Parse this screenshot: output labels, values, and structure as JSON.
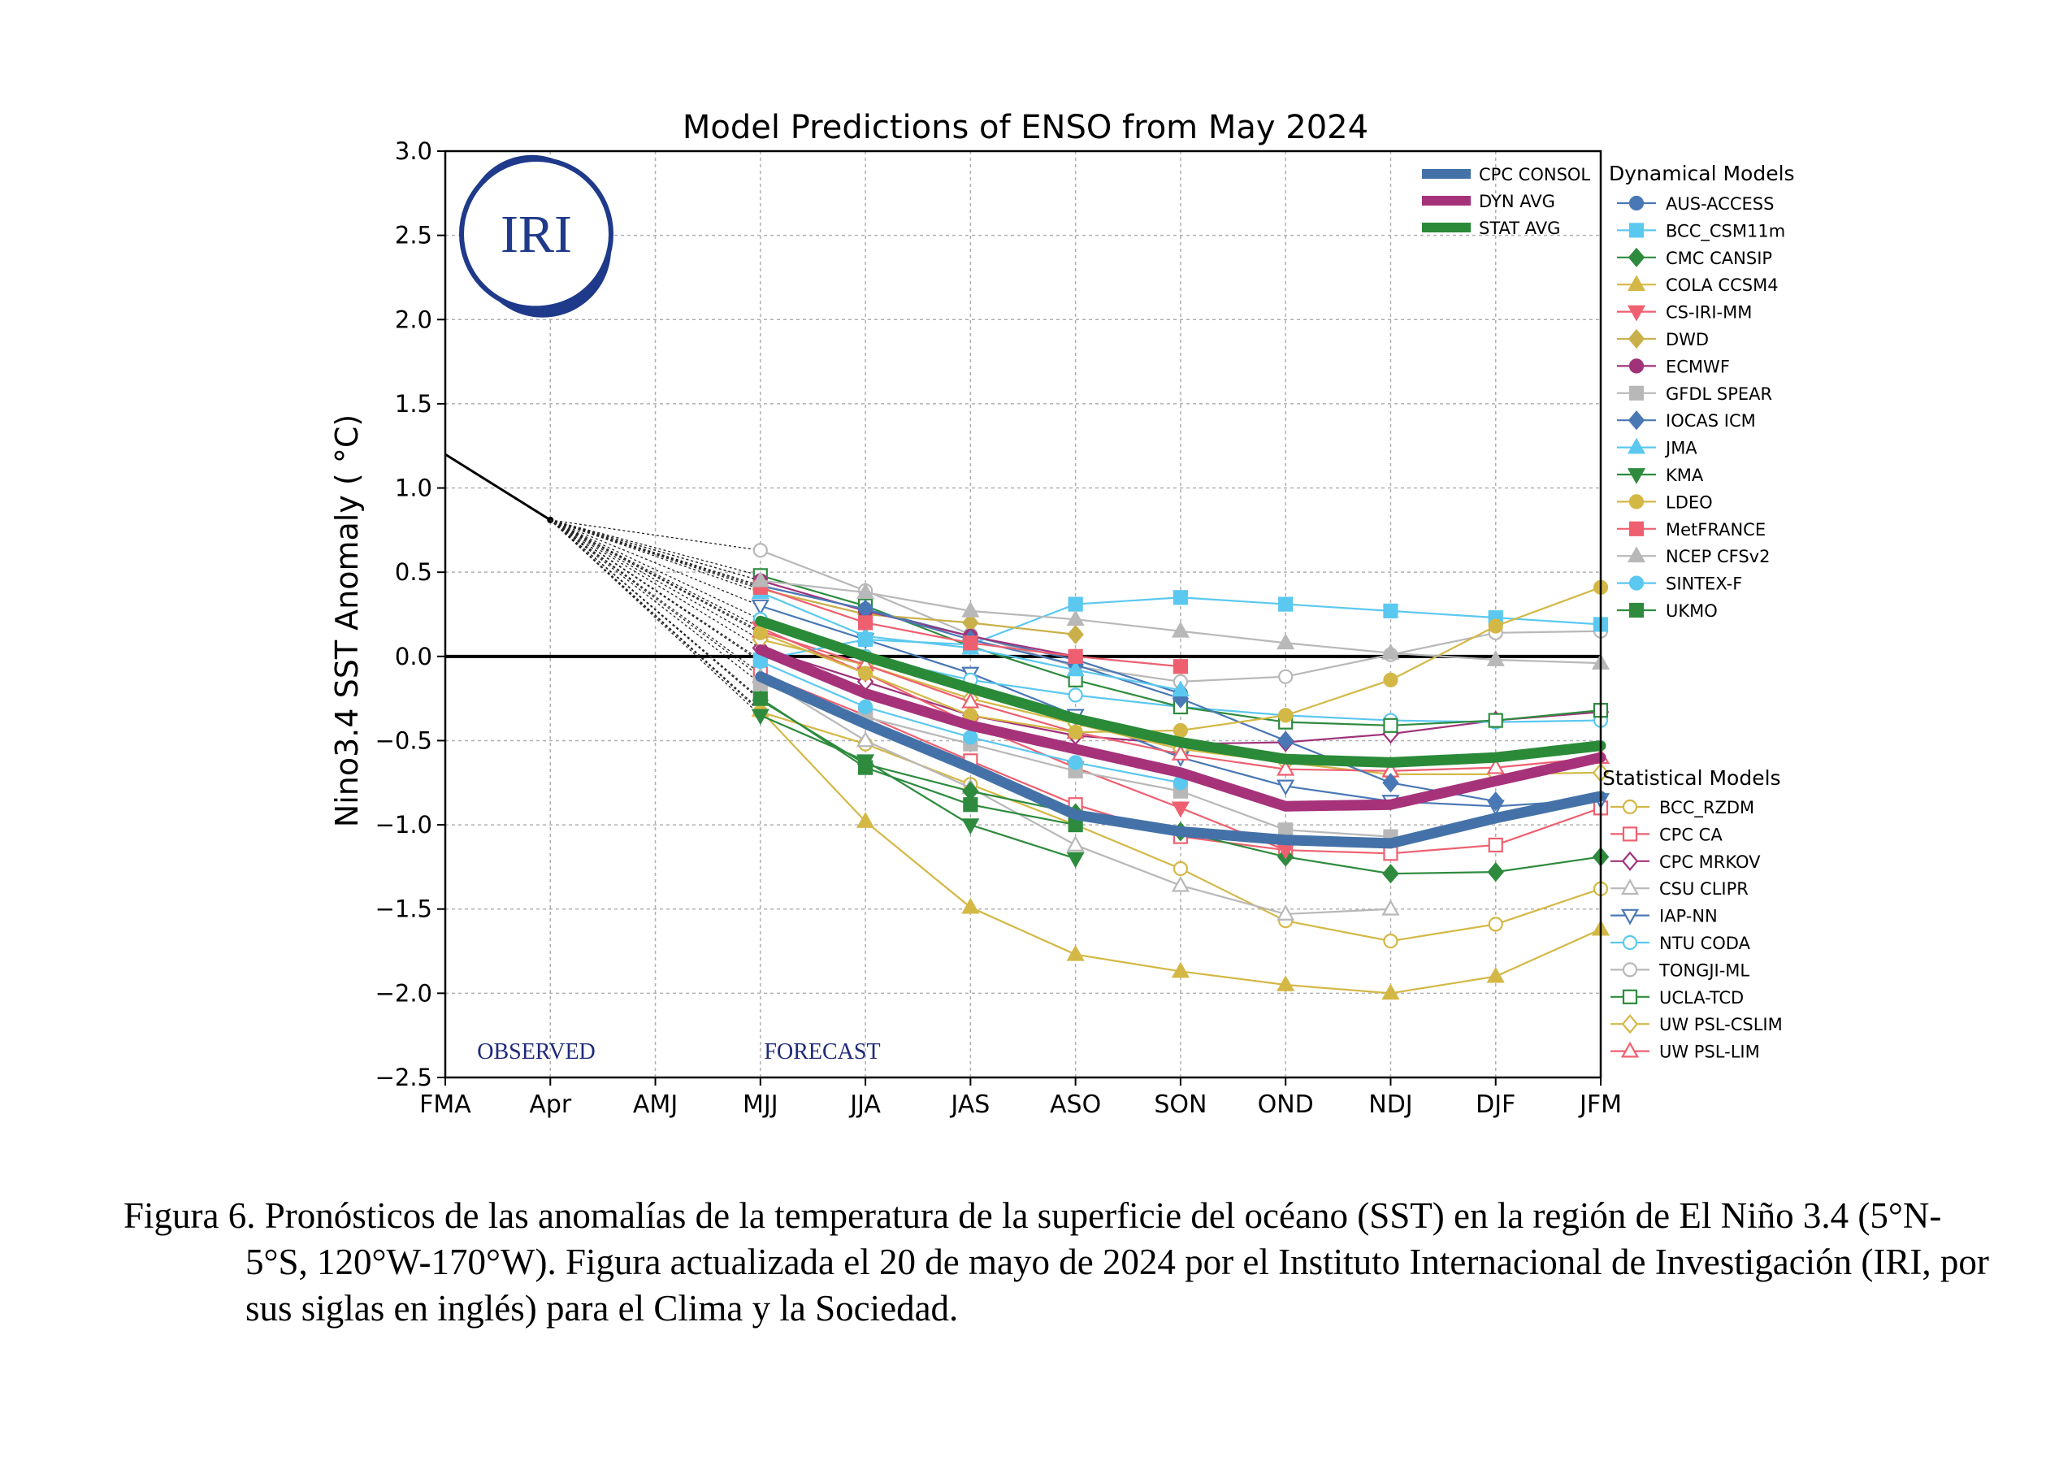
{
  "chart_data": {
    "type": "line",
    "title": "Model Predictions of ENSO from May 2024",
    "ylabel": "Nino3.4 SST Anomaly ( °C)",
    "xlabel": "",
    "categories": [
      "FMA",
      "Apr",
      "AMJ",
      "MJJ",
      "JJA",
      "JAS",
      "ASO",
      "SON",
      "OND",
      "NDJ",
      "DJF",
      "JFM"
    ],
    "ylim": [
      -2.5,
      3.0
    ],
    "yticks": [
      "3.0",
      "2.5",
      "2.0",
      "1.5",
      "1.0",
      "0.5",
      "0.0",
      "−0.5",
      "−1.0",
      "−1.5",
      "−2.0",
      "−2.5"
    ],
    "grid": true,
    "annotations": {
      "observed": "OBSERVED",
      "forecast": "FORECAST"
    },
    "logo_text": "IRI",
    "observed": {
      "x": [
        "FMA",
        "Apr"
      ],
      "values": [
        1.2,
        0.81
      ]
    },
    "consensus": [
      {
        "name": "CPC CONSOL",
        "color": "#4472a8",
        "values": [
          -0.12,
          -0.4,
          -0.66,
          -0.94,
          -1.04,
          -1.09,
          -1.11,
          -0.96,
          -0.83
        ]
      },
      {
        "name": "DYN AVG",
        "color": "#a6327a",
        "values": [
          0.04,
          -0.22,
          -0.41,
          -0.55,
          -0.69,
          -0.89,
          -0.88,
          -0.74,
          -0.6
        ]
      },
      {
        "name": "STAT AVG",
        "color": "#2a8a38",
        "values": [
          0.21,
          0.0,
          -0.19,
          -0.37,
          -0.51,
          -0.61,
          -0.63,
          -0.6,
          -0.53
        ]
      }
    ],
    "dynamical_title": "Dynamical Models",
    "dynamical": [
      {
        "name": "AUS-ACCESS",
        "color": "#4a78b5",
        "marker": "circle",
        "values": [
          0.42,
          0.28,
          0.12,
          -0.02,
          -0.22
        ]
      },
      {
        "name": "BCC_CSM11m",
        "color": "#5bc8f0",
        "marker": "square",
        "values": [
          -0.02,
          0.1,
          0.07,
          0.31,
          0.35,
          0.31,
          0.27,
          0.23,
          0.19
        ]
      },
      {
        "name": "CMC CANSIP",
        "color": "#2e8b3e",
        "marker": "diamond",
        "values": [
          -0.26,
          -0.64,
          -0.8,
          -0.93,
          -1.04,
          -1.19,
          -1.29,
          -1.28,
          -1.19
        ]
      },
      {
        "name": "COLA CCSM4",
        "color": "#d4b846",
        "marker": "triangle-up",
        "values": [
          -0.32,
          -0.98,
          -1.49,
          -1.77,
          -1.87,
          -1.95,
          -2.0,
          -1.9,
          -1.62
        ]
      },
      {
        "name": "CS-IRI-MM",
        "color": "#ee6070",
        "marker": "triangle-down",
        "values": [
          0.17,
          -0.1,
          -0.4,
          -0.66,
          -0.9,
          -1.15
        ]
      },
      {
        "name": "DWD",
        "color": "#c9b04a",
        "marker": "diamond",
        "values": [
          0.4,
          0.25,
          0.2,
          0.13
        ]
      },
      {
        "name": "ECMWF",
        "color": "#a0327a",
        "marker": "circle",
        "values": [
          0.45,
          0.27,
          0.12,
          0.0
        ]
      },
      {
        "name": "GFDL SPEAR",
        "color": "#b8b8b8",
        "marker": "square",
        "values": [
          -0.16,
          -0.36,
          -0.52,
          -0.68,
          -0.8,
          -1.03,
          -1.07
        ]
      },
      {
        "name": "IOCAS ICM",
        "color": "#4a78b5",
        "marker": "diamond",
        "values": [
          0.42,
          0.28,
          0.1,
          -0.05,
          -0.25,
          -0.5,
          -0.75,
          -0.86
        ]
      },
      {
        "name": "JMA",
        "color": "#5bc8f0",
        "marker": "triangle-up",
        "values": [
          0.38,
          0.12,
          0.05,
          -0.08,
          -0.2
        ]
      },
      {
        "name": "KMA",
        "color": "#2e8b3e",
        "marker": "triangle-down",
        "values": [
          -0.35,
          -0.62,
          -1.0,
          -1.2
        ]
      },
      {
        "name": "LDEO",
        "color": "#d4b846",
        "marker": "circle",
        "values": [
          0.14,
          -0.1,
          -0.35,
          -0.45,
          -0.44,
          -0.35,
          -0.14,
          0.18,
          0.41
        ]
      },
      {
        "name": "MetFRANCE",
        "color": "#ee6070",
        "marker": "square",
        "values": [
          0.41,
          0.2,
          0.08,
          0.0,
          -0.06
        ]
      },
      {
        "name": "NCEP CFSv2",
        "color": "#b8b8b8",
        "marker": "triangle-up",
        "values": [
          0.45,
          0.38,
          0.27,
          0.22,
          0.15,
          0.08,
          0.02,
          -0.02,
          -0.04
        ]
      },
      {
        "name": "SINTEX-F",
        "color": "#5bc8f0",
        "marker": "circle",
        "values": [
          -0.03,
          -0.3,
          -0.48,
          -0.63,
          -0.75
        ]
      },
      {
        "name": "UKMO",
        "color": "#2e8b3e",
        "marker": "square",
        "values": [
          -0.25,
          -0.66,
          -0.88,
          -1.0
        ]
      }
    ],
    "statistical_title": "Statistical Models",
    "statistical": [
      {
        "name": "BCC_RZDM",
        "color": "#d4b846",
        "marker": "circle",
        "values": [
          -0.33,
          -0.52,
          -0.76,
          -1.0,
          -1.26,
          -1.57,
          -1.69,
          -1.59,
          -1.38
        ]
      },
      {
        "name": "CPC CA",
        "color": "#ee6070",
        "marker": "square",
        "values": [
          -0.1,
          -0.35,
          -0.62,
          -0.88,
          -1.07,
          -1.15,
          -1.17,
          -1.12,
          -0.9
        ]
      },
      {
        "name": "CPC MRKOV",
        "color": "#a0327a",
        "marker": "diamond",
        "values": [
          0.05,
          -0.15,
          -0.35,
          -0.47,
          -0.52,
          -0.51,
          -0.46,
          -0.38,
          -0.33
        ]
      },
      {
        "name": "CSU CLIPR",
        "color": "#b8b8b8",
        "marker": "triangle-up",
        "values": [
          -0.12,
          -0.5,
          -0.78,
          -1.12,
          -1.36,
          -1.53,
          -1.5
        ]
      },
      {
        "name": "IAP-NN",
        "color": "#4a78b5",
        "marker": "triangle-down",
        "values": [
          0.3,
          0.1,
          -0.1,
          -0.35,
          -0.6,
          -0.77,
          -0.86,
          -0.89,
          -0.85
        ]
      },
      {
        "name": "NTU CODA",
        "color": "#5bc8f0",
        "marker": "circle",
        "values": [
          0.22,
          0.0,
          -0.14,
          -0.23,
          -0.3,
          -0.35,
          -0.38,
          -0.39,
          -0.38
        ]
      },
      {
        "name": "TONGJI-ML",
        "color": "#b8b8b8",
        "marker": "circle",
        "values": [
          0.63,
          0.39,
          0.13,
          -0.06,
          -0.15,
          -0.12,
          0.01,
          0.14,
          0.15
        ]
      },
      {
        "name": "UCLA-TCD",
        "color": "#2e8b3e",
        "marker": "square",
        "values": [
          0.48,
          0.3,
          0.06,
          -0.14,
          -0.3,
          -0.39,
          -0.41,
          -0.38,
          -0.32
        ]
      },
      {
        "name": "UW PSL-CSLIM",
        "color": "#d4b846",
        "marker": "diamond",
        "values": [
          0.1,
          -0.05,
          -0.25,
          -0.4,
          -0.55,
          -0.63,
          -0.7,
          -0.7,
          -0.69
        ]
      },
      {
        "name": "UW PSL-LIM",
        "color": "#ee6070",
        "marker": "triangle-up",
        "values": [
          0.15,
          -0.05,
          -0.27,
          -0.45,
          -0.58,
          -0.67,
          -0.68,
          -0.66,
          -0.6
        ]
      }
    ]
  },
  "caption": {
    "lines": [
      "Figura 6. Pronósticos de las anomalías de la temperatura de la superficie del océano (SST) en la región",
      "de El Niño 3.4 (5°N-5°S, 120°W-170°W). Figura actualizada el 20 de mayo de 2024 por el",
      "Instituto Internacional de Investigación (IRI, por sus siglas en inglés) para el Clima y la",
      "Sociedad."
    ]
  }
}
